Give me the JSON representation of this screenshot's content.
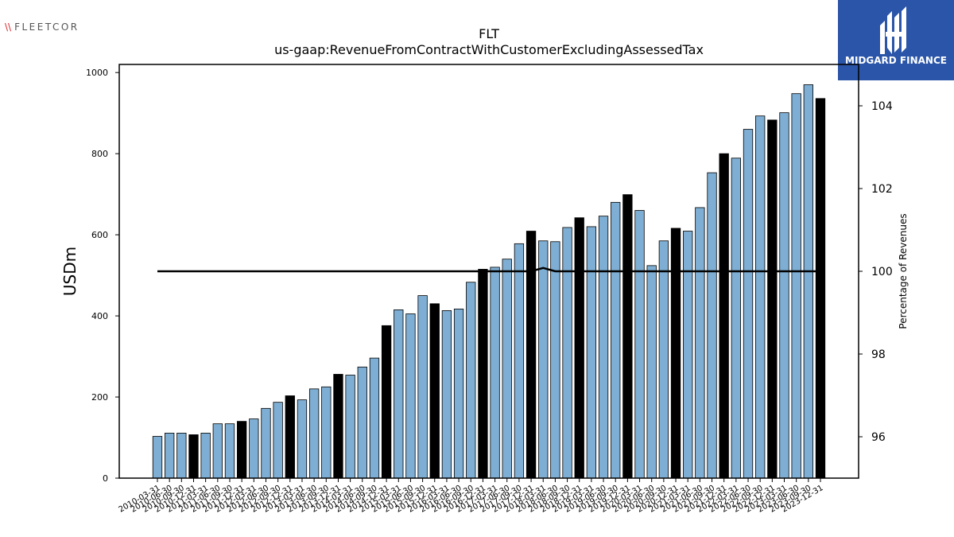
{
  "logos": {
    "left_mark": "\\\\",
    "left_text": "FLEETCOR",
    "right_text": "MIDGARD FINANCE"
  },
  "colors": {
    "bar": "#7eaed3",
    "bar_highlight": "#000000",
    "line": "#000000",
    "brand_right": "#2a55a8"
  },
  "chart_data": {
    "type": "bar",
    "title": "FLT",
    "subtitle": "us-gaap:RevenueFromContractWithCustomerExcludingAssessedTax",
    "ylabel": "USDm",
    "y2label": "Percentage of Revenues",
    "ylim": [
      0,
      1020
    ],
    "y2lim": [
      95,
      105
    ],
    "yticks": [
      0,
      200,
      400,
      600,
      800,
      1000
    ],
    "y2ticks": [
      96,
      98,
      100,
      102,
      104
    ],
    "grid": false,
    "categories": [
      "2010-03-31",
      "2010-06-30",
      "2010-09-30",
      "2010-12-31",
      "2011-03-31",
      "2011-06-30",
      "2011-09-30",
      "2011-12-31",
      "2012-03-31",
      "2012-06-30",
      "2012-09-30",
      "2012-12-31",
      "2013-03-31",
      "2013-06-30",
      "2013-09-30",
      "2013-12-31",
      "2014-03-31",
      "2014-06-30",
      "2014-09-30",
      "2014-12-31",
      "2015-03-31",
      "2015-06-30",
      "2015-09-30",
      "2015-12-31",
      "2016-03-31",
      "2016-06-30",
      "2016-09-30",
      "2016-12-31",
      "2017-03-31",
      "2017-06-30",
      "2017-09-30",
      "2017-12-31",
      "2018-03-31",
      "2018-06-30",
      "2018-09-30",
      "2018-12-31",
      "2019-03-31",
      "2019-06-30",
      "2019-09-30",
      "2019-12-31",
      "2020-03-31",
      "2020-06-30",
      "2020-09-30",
      "2020-12-31",
      "2021-03-31",
      "2021-06-30",
      "2021-09-30",
      "2021-12-31",
      "2022-03-31",
      "2022-06-30",
      "2022-09-30",
      "2022-12-31",
      "2023-03-31",
      "2023-06-30",
      "2023-09-30",
      "2023-12-31"
    ],
    "values": [
      103,
      111,
      111,
      107,
      111,
      134,
      134,
      140,
      146,
      172,
      187,
      203,
      193,
      220,
      225,
      256,
      254,
      274,
      296,
      376,
      415,
      405,
      450,
      430,
      413,
      417,
      483,
      515,
      520,
      540,
      578,
      609,
      585,
      583,
      618,
      642,
      620,
      646,
      680,
      699,
      660,
      524,
      585,
      616,
      609,
      667,
      753,
      800,
      789,
      860,
      893,
      883,
      901,
      948,
      970,
      936
    ],
    "highlight": [
      false,
      false,
      false,
      true,
      false,
      false,
      false,
      true,
      false,
      false,
      false,
      true,
      false,
      false,
      false,
      true,
      false,
      false,
      false,
      true,
      false,
      false,
      false,
      true,
      false,
      false,
      false,
      true,
      false,
      false,
      false,
      true,
      false,
      false,
      false,
      true,
      false,
      false,
      false,
      true,
      false,
      false,
      false,
      true,
      false,
      false,
      false,
      true,
      false,
      false,
      false,
      true,
      false,
      false,
      false,
      true
    ],
    "series": [
      {
        "axis": "right",
        "type": "line",
        "values": [
          100,
          100,
          100,
          100,
          100,
          100,
          100,
          100,
          100,
          100,
          100,
          100,
          100,
          100,
          100,
          100,
          100,
          100,
          100,
          100,
          100,
          100,
          100,
          100,
          100,
          100,
          100,
          100,
          100,
          100,
          100,
          100,
          100.08,
          100,
          100,
          100,
          100,
          100,
          100,
          100,
          100,
          100,
          100,
          100,
          100,
          100,
          100,
          100,
          100,
          100,
          100,
          100,
          100,
          100,
          100,
          100
        ]
      }
    ]
  }
}
